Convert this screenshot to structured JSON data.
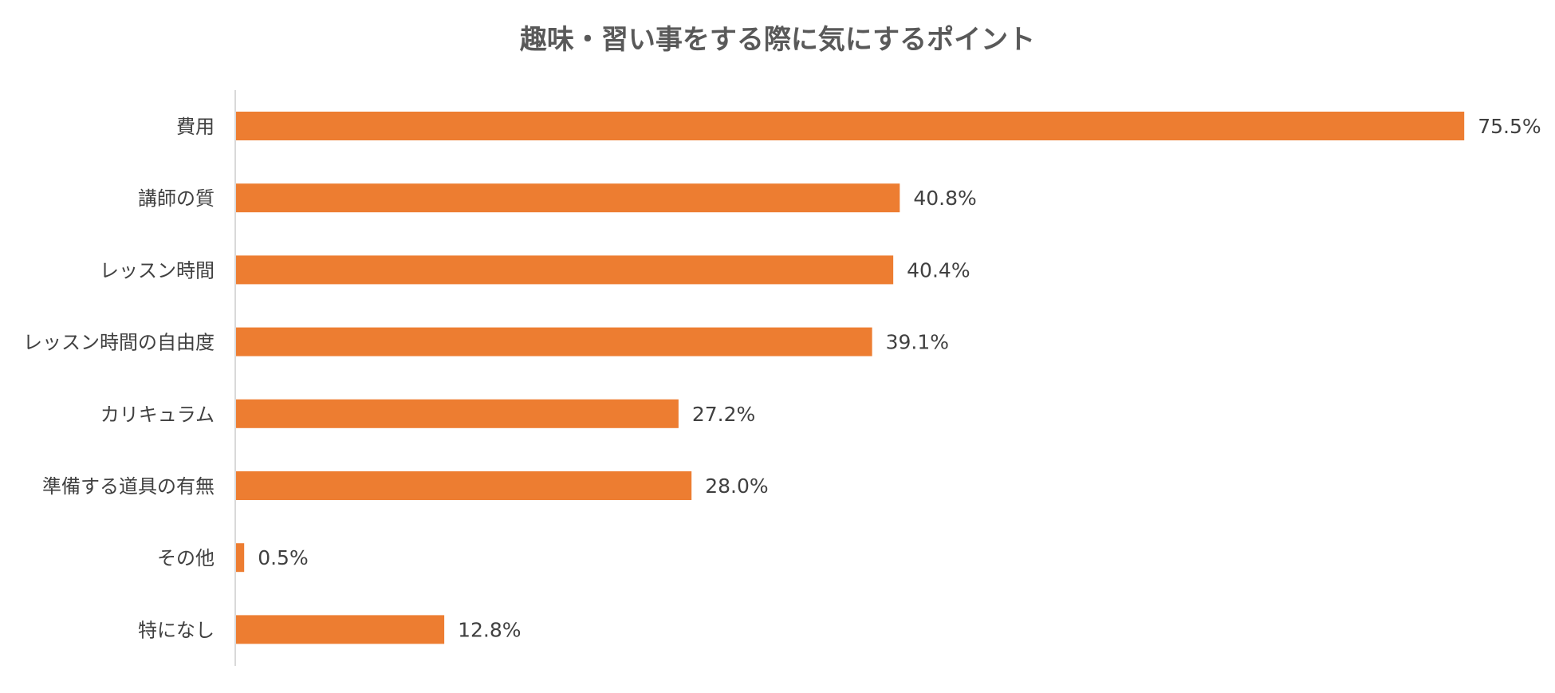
{
  "chart_data": {
    "type": "bar",
    "orientation": "horizontal",
    "title": "趣味・習い事をする際に気にするポイント",
    "categories": [
      "費用",
      "講師の質",
      "レッスン時間",
      "レッスン時間の自由度",
      "カリキュラム",
      "準備する道具の有無",
      "その他",
      "特になし"
    ],
    "values": [
      75.5,
      40.8,
      40.4,
      39.1,
      27.2,
      28.0,
      0.5,
      12.8
    ],
    "value_labels": [
      "75.5%",
      "40.8%",
      "40.4%",
      "39.1%",
      "27.2%",
      "28.0%",
      "0.5%",
      "12.8%"
    ],
    "unit": "%",
    "xlim": [
      0,
      100
    ],
    "grid": false,
    "legend": "none",
    "colors": {
      "bar": "#ED7D31",
      "axis": "#D9D9D9",
      "title": "#595959",
      "text": "#404040"
    }
  }
}
